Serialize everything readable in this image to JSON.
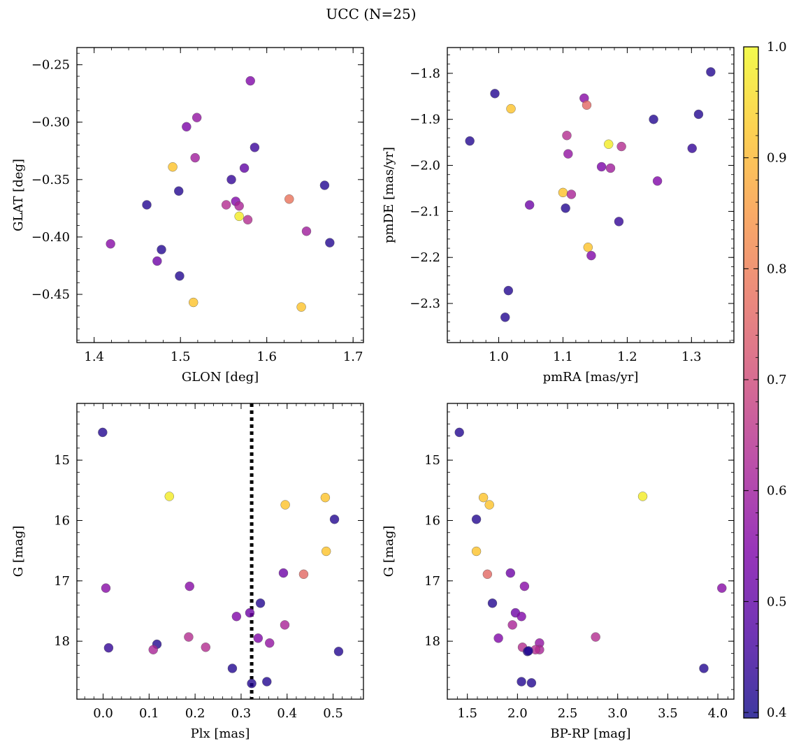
{
  "figure": {
    "title": "UCC (N=25)"
  },
  "colorbar": {
    "colormap": "plasma",
    "range": [
      0.395,
      1.0
    ],
    "ticks": [
      0.4,
      0.5,
      0.6,
      0.7,
      0.8,
      0.9,
      1.0
    ],
    "tick_labels": [
      "0.4",
      "0.5",
      "0.6",
      "0.7",
      "0.8",
      "0.9",
      "1.0"
    ]
  },
  "chart_data": [
    {
      "type": "scatter",
      "panel": "top-left",
      "xlabel": "GLON [deg]",
      "ylabel": "GLAT [deg]",
      "xlim": [
        1.38,
        1.712
      ],
      "ylim": [
        -0.492,
        -0.235
      ],
      "y_inverted": false,
      "xticks": [
        1.4,
        1.5,
        1.6,
        1.7
      ],
      "xtick_labels": [
        "1.4",
        "1.5",
        "1.6",
        "1.7"
      ],
      "yticks": [
        -0.25,
        -0.3,
        -0.35,
        -0.4,
        -0.45
      ],
      "ytick_labels": [
        "−0.25",
        "−0.30",
        "−0.35",
        "−0.40",
        "−0.45"
      ],
      "points": [
        {
          "x": 1.581,
          "y": -0.264,
          "c": 0.55
        },
        {
          "x": 1.519,
          "y": -0.296,
          "c": 0.58
        },
        {
          "x": 1.507,
          "y": -0.304,
          "c": 0.54
        },
        {
          "x": 1.586,
          "y": -0.322,
          "c": 0.45
        },
        {
          "x": 1.517,
          "y": -0.331,
          "c": 0.6
        },
        {
          "x": 1.491,
          "y": -0.339,
          "c": 0.92
        },
        {
          "x": 1.574,
          "y": -0.34,
          "c": 0.5
        },
        {
          "x": 1.559,
          "y": -0.35,
          "c": 0.44
        },
        {
          "x": 1.667,
          "y": -0.355,
          "c": 0.42
        },
        {
          "x": 1.498,
          "y": -0.36,
          "c": 0.42
        },
        {
          "x": 1.626,
          "y": -0.367,
          "c": 0.78
        },
        {
          "x": 1.564,
          "y": -0.369,
          "c": 0.55
        },
        {
          "x": 1.553,
          "y": -0.372,
          "c": 0.64
        },
        {
          "x": 1.568,
          "y": -0.373,
          "c": 0.62
        },
        {
          "x": 1.461,
          "y": -0.372,
          "c": 0.42
        },
        {
          "x": 1.568,
          "y": -0.382,
          "c": 0.98
        },
        {
          "x": 1.578,
          "y": -0.385,
          "c": 0.64
        },
        {
          "x": 1.646,
          "y": -0.395,
          "c": 0.6
        },
        {
          "x": 1.673,
          "y": -0.405,
          "c": 0.42
        },
        {
          "x": 1.419,
          "y": -0.406,
          "c": 0.56
        },
        {
          "x": 1.478,
          "y": -0.411,
          "c": 0.42
        },
        {
          "x": 1.473,
          "y": -0.421,
          "c": 0.52
        },
        {
          "x": 1.499,
          "y": -0.434,
          "c": 0.42
        },
        {
          "x": 1.515,
          "y": -0.457,
          "c": 0.92
        },
        {
          "x": 1.64,
          "y": -0.461,
          "c": 0.92
        }
      ]
    },
    {
      "type": "scatter",
      "panel": "top-right",
      "xlabel": "pmRA [mas/yr]",
      "ylabel": "pmDE [mas/yr]",
      "xlim": [
        0.92,
        1.366
      ],
      "ylim": [
        -2.385,
        -1.744
      ],
      "y_inverted": false,
      "xticks": [
        1.0,
        1.1,
        1.2,
        1.3
      ],
      "xtick_labels": [
        "1.0",
        "1.1",
        "1.2",
        "1.3"
      ],
      "yticks": [
        -1.8,
        -1.9,
        -2.0,
        -2.1,
        -2.2,
        -2.3
      ],
      "ytick_labels": [
        "−1.8",
        "−1.9",
        "−2.0",
        "−2.1",
        "−2.2",
        "−2.3"
      ],
      "points": [
        {
          "x": 1.33,
          "y": -1.797,
          "c": 0.42
        },
        {
          "x": 0.994,
          "y": -1.844,
          "c": 0.42
        },
        {
          "x": 1.133,
          "y": -1.854,
          "c": 0.56
        },
        {
          "x": 1.137,
          "y": -1.869,
          "c": 0.76
        },
        {
          "x": 1.019,
          "y": -1.877,
          "c": 0.92
        },
        {
          "x": 1.311,
          "y": -1.889,
          "c": 0.42
        },
        {
          "x": 1.241,
          "y": -1.9,
          "c": 0.42
        },
        {
          "x": 1.106,
          "y": -1.935,
          "c": 0.64
        },
        {
          "x": 0.955,
          "y": -1.947,
          "c": 0.42
        },
        {
          "x": 1.171,
          "y": -1.954,
          "c": 0.98
        },
        {
          "x": 1.191,
          "y": -1.959,
          "c": 0.64
        },
        {
          "x": 1.301,
          "y": -1.963,
          "c": 0.44
        },
        {
          "x": 1.108,
          "y": -1.975,
          "c": 0.58
        },
        {
          "x": 1.16,
          "y": -2.003,
          "c": 0.54
        },
        {
          "x": 1.174,
          "y": -2.006,
          "c": 0.6
        },
        {
          "x": 1.247,
          "y": -2.034,
          "c": 0.55
        },
        {
          "x": 1.1,
          "y": -2.059,
          "c": 0.92
        },
        {
          "x": 1.113,
          "y": -2.063,
          "c": 0.62
        },
        {
          "x": 1.048,
          "y": -2.086,
          "c": 0.52
        },
        {
          "x": 1.104,
          "y": -2.093,
          "c": 0.42
        },
        {
          "x": 1.187,
          "y": -2.122,
          "c": 0.44
        },
        {
          "x": 1.139,
          "y": -2.178,
          "c": 0.92
        },
        {
          "x": 1.144,
          "y": -2.196,
          "c": 0.55
        },
        {
          "x": 1.015,
          "y": -2.272,
          "c": 0.42
        },
        {
          "x": 1.01,
          "y": -2.33,
          "c": 0.42
        }
      ]
    },
    {
      "type": "scatter",
      "panel": "bottom-left",
      "xlabel": "Plx [mas]",
      "ylabel": "G [mag]",
      "xlim": [
        -0.057,
        0.566
      ],
      "ylim": [
        14.06,
        18.96
      ],
      "y_inverted": true,
      "xticks": [
        0.0,
        0.1,
        0.2,
        0.3,
        0.4,
        0.5
      ],
      "xtick_labels": [
        "0.0",
        "0.1",
        "0.2",
        "0.3",
        "0.4",
        "0.5"
      ],
      "yticks": [
        15,
        16,
        17,
        18
      ],
      "ytick_labels": [
        "15",
        "16",
        "17",
        "18"
      ],
      "vline": {
        "x": 0.323,
        "style": "dotted"
      },
      "points": [
        {
          "x": -0.001,
          "y": 14.54,
          "c": 0.42
        },
        {
          "x": 0.144,
          "y": 15.6,
          "c": 0.98
        },
        {
          "x": 0.483,
          "y": 15.62,
          "c": 0.92
        },
        {
          "x": 0.396,
          "y": 15.74,
          "c": 0.92
        },
        {
          "x": 0.503,
          "y": 15.98,
          "c": 0.42
        },
        {
          "x": 0.485,
          "y": 16.51,
          "c": 0.92
        },
        {
          "x": 0.392,
          "y": 16.87,
          "c": 0.52
        },
        {
          "x": 0.436,
          "y": 16.89,
          "c": 0.76
        },
        {
          "x": 0.188,
          "y": 17.09,
          "c": 0.56
        },
        {
          "x": 0.006,
          "y": 17.12,
          "c": 0.56
        },
        {
          "x": 0.342,
          "y": 17.37,
          "c": 0.42
        },
        {
          "x": 0.319,
          "y": 17.53,
          "c": 0.52
        },
        {
          "x": 0.29,
          "y": 17.59,
          "c": 0.55
        },
        {
          "x": 0.395,
          "y": 17.73,
          "c": 0.62
        },
        {
          "x": 0.186,
          "y": 17.93,
          "c": 0.64
        },
        {
          "x": 0.337,
          "y": 17.95,
          "c": 0.55
        },
        {
          "x": 0.362,
          "y": 18.03,
          "c": 0.58
        },
        {
          "x": 0.117,
          "y": 18.05,
          "c": 0.42
        },
        {
          "x": 0.223,
          "y": 18.1,
          "c": 0.64
        },
        {
          "x": 0.012,
          "y": 18.11,
          "c": 0.44
        },
        {
          "x": 0.109,
          "y": 18.14,
          "c": 0.62
        },
        {
          "x": 0.512,
          "y": 18.17,
          "c": 0.42
        },
        {
          "x": 0.281,
          "y": 18.45,
          "c": 0.42
        },
        {
          "x": 0.356,
          "y": 18.67,
          "c": 0.42
        },
        {
          "x": 0.323,
          "y": 18.7,
          "c": 0.42
        }
      ]
    },
    {
      "type": "scatter",
      "panel": "bottom-right",
      "xlabel": "BP-RP [mag]",
      "ylabel": "G [mag]",
      "xlim": [
        1.3,
        4.16
      ],
      "ylim": [
        14.06,
        18.96
      ],
      "y_inverted": true,
      "xticks": [
        1.5,
        2.0,
        2.5,
        3.0,
        3.5,
        4.0
      ],
      "xtick_labels": [
        "1.5",
        "2.0",
        "2.5",
        "3.0",
        "3.5",
        "4.0"
      ],
      "yticks": [
        15,
        16,
        17,
        18
      ],
      "ytick_labels": [
        "15",
        "16",
        "17",
        "18"
      ],
      "points": [
        {
          "x": 1.42,
          "y": 14.54,
          "c": 0.42
        },
        {
          "x": 3.25,
          "y": 15.6,
          "c": 0.98
        },
        {
          "x": 1.66,
          "y": 15.62,
          "c": 0.92
        },
        {
          "x": 1.72,
          "y": 15.74,
          "c": 0.92
        },
        {
          "x": 1.59,
          "y": 15.98,
          "c": 0.42
        },
        {
          "x": 1.59,
          "y": 16.51,
          "c": 0.92
        },
        {
          "x": 1.93,
          "y": 16.87,
          "c": 0.52
        },
        {
          "x": 1.7,
          "y": 16.89,
          "c": 0.76
        },
        {
          "x": 2.07,
          "y": 17.09,
          "c": 0.56
        },
        {
          "x": 4.04,
          "y": 17.12,
          "c": 0.56
        },
        {
          "x": 1.75,
          "y": 17.37,
          "c": 0.42
        },
        {
          "x": 1.98,
          "y": 17.53,
          "c": 0.52
        },
        {
          "x": 2.04,
          "y": 17.59,
          "c": 0.55
        },
        {
          "x": 1.95,
          "y": 17.73,
          "c": 0.62
        },
        {
          "x": 2.78,
          "y": 17.93,
          "c": 0.64
        },
        {
          "x": 1.81,
          "y": 17.95,
          "c": 0.55
        },
        {
          "x": 2.22,
          "y": 18.03,
          "c": 0.58
        },
        {
          "x": 2.05,
          "y": 18.1,
          "c": 0.64
        },
        {
          "x": 2.22,
          "y": 18.14,
          "c": 0.62
        },
        {
          "x": 2.18,
          "y": 18.14,
          "c": 0.64
        },
        {
          "x": 2.1,
          "y": 18.17,
          "c": 0.42
        },
        {
          "x": 3.86,
          "y": 18.45,
          "c": 0.42
        },
        {
          "x": 2.04,
          "y": 18.67,
          "c": 0.42
        },
        {
          "x": 2.14,
          "y": 18.69,
          "c": 0.42
        },
        {
          "x": 2.11,
          "y": 18.16,
          "c": 0.42
        }
      ]
    }
  ]
}
